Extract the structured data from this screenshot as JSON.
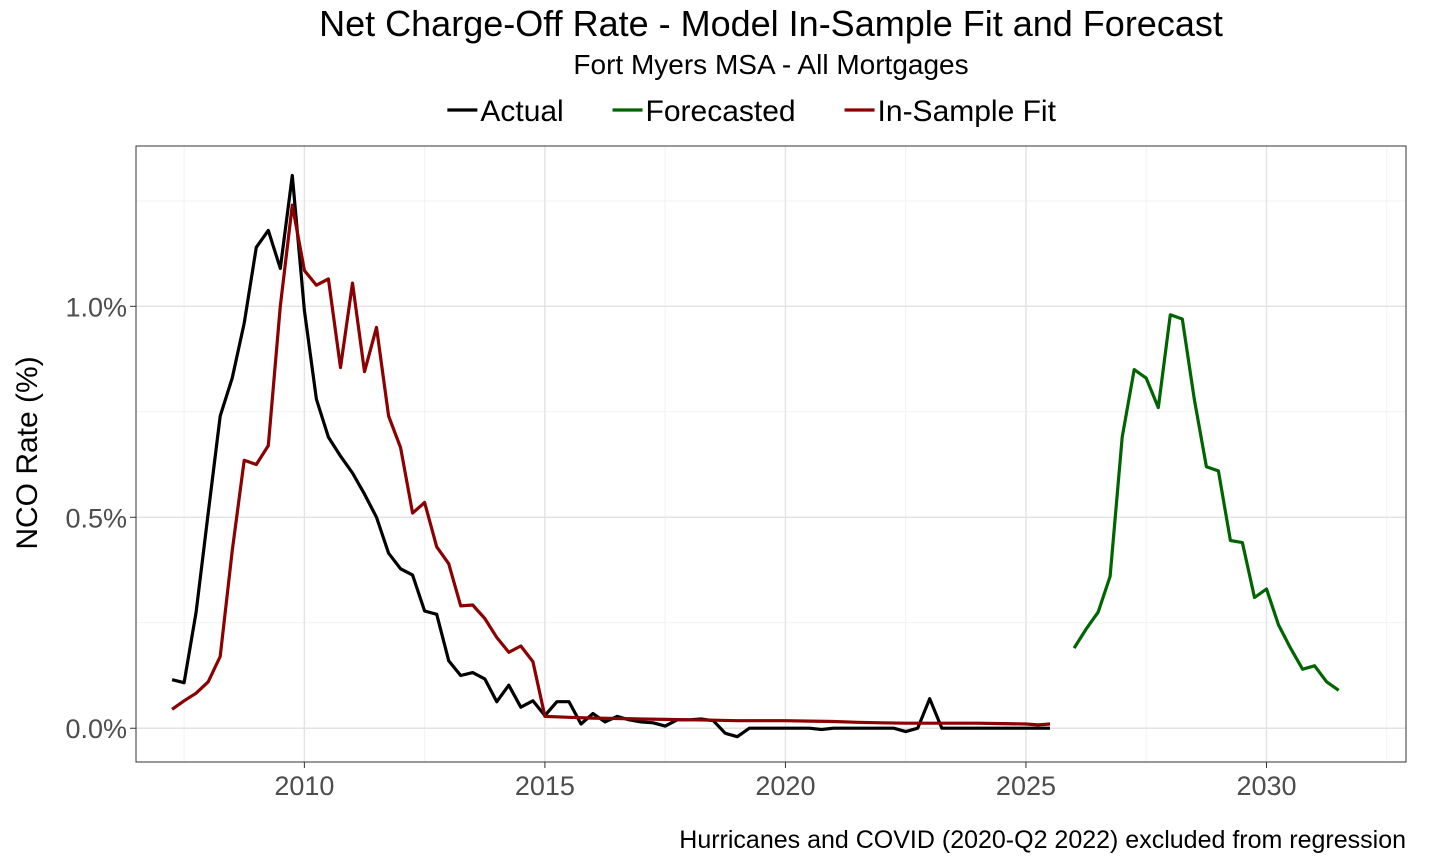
{
  "chart_data": {
    "type": "line",
    "title": "Net Charge-Off Rate - Model In-Sample Fit and Forecast",
    "subtitle": "Fort Myers MSA - All Mortgages",
    "ylabel": "NCO Rate (%)",
    "xlabel": "",
    "caption": "Hurricanes and COVID (2020-Q2 2022) excluded from regression",
    "xlim": [
      2006.5,
      2032.9
    ],
    "ylim": [
      -0.08,
      1.38
    ],
    "x_ticks": [
      2010,
      2015,
      2020,
      2025,
      2030
    ],
    "x_tick_labels": [
      "2010",
      "2015",
      "2020",
      "2025",
      "2030"
    ],
    "y_ticks": [
      0.0,
      0.5,
      1.0
    ],
    "y_tick_labels": [
      "0.0%",
      "0.5%",
      "1.0%"
    ],
    "grid": true,
    "legend_position": "top",
    "series": [
      {
        "name": "Actual",
        "color": "#000000",
        "x": [
          2007.25,
          2007.5,
          2007.75,
          2008.0,
          2008.25,
          2008.5,
          2008.75,
          2009.0,
          2009.25,
          2009.5,
          2009.75,
          2010.0,
          2010.25,
          2010.5,
          2010.75,
          2011.0,
          2011.25,
          2011.5,
          2011.75,
          2012.0,
          2012.25,
          2012.5,
          2012.75,
          2013.0,
          2013.25,
          2013.5,
          2013.75,
          2014.0,
          2014.25,
          2014.5,
          2014.75,
          2015.0,
          2015.25,
          2015.5,
          2015.75,
          2016.0,
          2016.25,
          2016.5,
          2016.75,
          2017.0,
          2017.25,
          2017.5,
          2017.75,
          2018.0,
          2018.25,
          2018.5,
          2018.75,
          2019.0,
          2019.25,
          2019.5,
          2019.75,
          2020.0,
          2020.25,
          2020.5,
          2020.75,
          2021.0,
          2021.25,
          2021.5,
          2021.75,
          2022.0,
          2022.25,
          2022.5,
          2022.75,
          2023.0,
          2023.25,
          2023.5,
          2023.75,
          2024.0,
          2024.25,
          2024.5,
          2024.75,
          2025.0,
          2025.25,
          2025.5
        ],
        "values": [
          0.115,
          0.108,
          0.275,
          0.51,
          0.74,
          0.83,
          0.96,
          1.14,
          1.18,
          1.09,
          1.31,
          0.99,
          0.78,
          0.69,
          0.645,
          0.605,
          0.555,
          0.5,
          0.415,
          0.378,
          0.363,
          0.278,
          0.27,
          0.16,
          0.125,
          0.132,
          0.117,
          0.063,
          0.102,
          0.05,
          0.065,
          0.03,
          0.063,
          0.063,
          0.01,
          0.035,
          0.015,
          0.028,
          0.02,
          0.015,
          0.013,
          0.005,
          0.02,
          0.02,
          0.022,
          0.018,
          -0.012,
          -0.02,
          0.0,
          0.0,
          0.0,
          0.0,
          0.0,
          0.0,
          -0.003,
          0.0,
          0.0,
          0.0,
          0.0,
          0.0,
          0.0,
          -0.008,
          0.0,
          0.07,
          0.0,
          0.0,
          0.0,
          0.0,
          0.0,
          0.0,
          0.0,
          0.0,
          0.0,
          0.0
        ]
      },
      {
        "name": "Forecasted",
        "color": "#006400",
        "x": [
          2026.0,
          2026.25,
          2026.5,
          2026.75,
          2027.0,
          2027.25,
          2027.5,
          2027.75,
          2028.0,
          2028.25,
          2028.5,
          2028.75,
          2029.0,
          2029.25,
          2029.5,
          2029.75,
          2030.0,
          2030.25,
          2030.5,
          2030.75,
          2031.0,
          2031.25,
          2031.5
        ],
        "values": [
          0.19,
          0.235,
          0.275,
          0.36,
          0.69,
          0.85,
          0.83,
          0.76,
          0.98,
          0.97,
          0.78,
          0.62,
          0.61,
          0.445,
          0.44,
          0.31,
          0.33,
          0.245,
          0.19,
          0.14,
          0.148,
          0.11,
          0.09
        ]
      },
      {
        "name": "In-Sample Fit",
        "color": "#8b0000",
        "x": [
          2007.25,
          2007.5,
          2007.75,
          2008.0,
          2008.25,
          2008.5,
          2008.75,
          2009.0,
          2009.25,
          2009.5,
          2009.75,
          2010.0,
          2010.25,
          2010.5,
          2010.75,
          2011.0,
          2011.25,
          2011.5,
          2011.75,
          2012.0,
          2012.25,
          2012.5,
          2012.75,
          2013.0,
          2013.25,
          2013.5,
          2013.75,
          2014.0,
          2014.25,
          2014.5,
          2014.75,
          2015.0,
          2015.5,
          2016.0,
          2016.5,
          2017.0,
          2017.5,
          2018.0,
          2018.5,
          2019.0,
          2019.5,
          2020.0,
          2020.5,
          2021.0,
          2021.5,
          2022.0,
          2022.5,
          2023.0,
          2023.5,
          2024.0,
          2024.5,
          2025.0,
          2025.25,
          2025.5
        ],
        "values": [
          0.045,
          0.065,
          0.083,
          0.11,
          0.17,
          0.42,
          0.635,
          0.625,
          0.67,
          1.0,
          1.24,
          1.085,
          1.05,
          1.065,
          0.855,
          1.055,
          0.845,
          0.95,
          0.74,
          0.665,
          0.51,
          0.535,
          0.43,
          0.39,
          0.29,
          0.292,
          0.26,
          0.215,
          0.18,
          0.195,
          0.158,
          0.028,
          0.026,
          0.024,
          0.023,
          0.022,
          0.021,
          0.02,
          0.019,
          0.018,
          0.018,
          0.018,
          0.017,
          0.016,
          0.014,
          0.013,
          0.012,
          0.012,
          0.012,
          0.012,
          0.011,
          0.01,
          0.008,
          0.01
        ]
      }
    ]
  }
}
